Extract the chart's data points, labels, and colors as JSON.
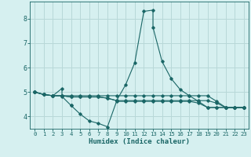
{
  "title": "",
  "xlabel": "Humidex (Indice chaleur)",
  "ylabel": "",
  "bg_color": "#d6f0f0",
  "grid_color": "#b8d8d8",
  "line_color": "#1a6666",
  "xlim": [
    -0.5,
    23.5
  ],
  "ylim": [
    3.5,
    8.7
  ],
  "yticks": [
    4,
    5,
    6,
    7,
    8
  ],
  "xticks": [
    0,
    1,
    2,
    3,
    4,
    5,
    6,
    7,
    8,
    9,
    10,
    11,
    12,
    13,
    14,
    15,
    16,
    17,
    18,
    19,
    20,
    21,
    22,
    23
  ],
  "lines": [
    {
      "x": [
        0,
        1,
        2,
        3,
        3,
        4,
        4,
        5,
        6,
        7,
        8,
        9,
        10,
        11,
        12,
        13,
        14,
        15,
        16,
        17,
        18,
        19,
        20,
        21,
        22,
        23
      ],
      "y": [
        5.0,
        4.9,
        4.85,
        5.15,
        4.82,
        4.45,
        4.45,
        4.1,
        3.82,
        3.72,
        3.58,
        4.62,
        4.62,
        4.62,
        4.62,
        4.62,
        4.62,
        4.62,
        4.62,
        4.62,
        4.55,
        4.37,
        4.37,
        4.37,
        4.37,
        4.37
      ]
    },
    {
      "x": [
        0,
        1,
        2,
        3,
        4,
        5,
        6,
        7,
        8,
        9,
        10,
        11,
        12,
        13,
        13,
        14,
        15,
        16,
        17,
        18,
        19,
        20,
        21,
        22,
        23
      ],
      "y": [
        5.0,
        4.9,
        4.85,
        4.85,
        4.8,
        4.8,
        4.8,
        4.8,
        4.75,
        4.65,
        5.3,
        6.2,
        8.3,
        8.35,
        7.65,
        6.25,
        5.55,
        5.1,
        4.85,
        4.62,
        4.37,
        4.37,
        4.37,
        4.37,
        4.37
      ]
    },
    {
      "x": [
        0,
        1,
        2,
        3,
        4,
        5,
        6,
        7,
        8,
        9,
        10,
        11,
        12,
        13,
        14,
        15,
        16,
        17,
        18,
        19,
        20,
        21,
        22,
        23
      ],
      "y": [
        5.0,
        4.9,
        4.85,
        4.85,
        4.85,
        4.85,
        4.85,
        4.85,
        4.85,
        4.85,
        4.85,
        4.85,
        4.85,
        4.85,
        4.85,
        4.85,
        4.85,
        4.85,
        4.85,
        4.85,
        4.62,
        4.37,
        4.37,
        4.37
      ]
    },
    {
      "x": [
        0,
        1,
        2,
        3,
        4,
        5,
        6,
        7,
        8,
        9,
        10,
        11,
        12,
        13,
        14,
        15,
        16,
        17,
        18,
        19,
        20,
        21,
        22,
        23
      ],
      "y": [
        5.0,
        4.9,
        4.85,
        4.85,
        4.8,
        4.8,
        4.8,
        4.8,
        4.75,
        4.65,
        4.65,
        4.65,
        4.65,
        4.65,
        4.65,
        4.65,
        4.65,
        4.65,
        4.65,
        4.65,
        4.55,
        4.37,
        4.37,
        4.37
      ]
    }
  ]
}
